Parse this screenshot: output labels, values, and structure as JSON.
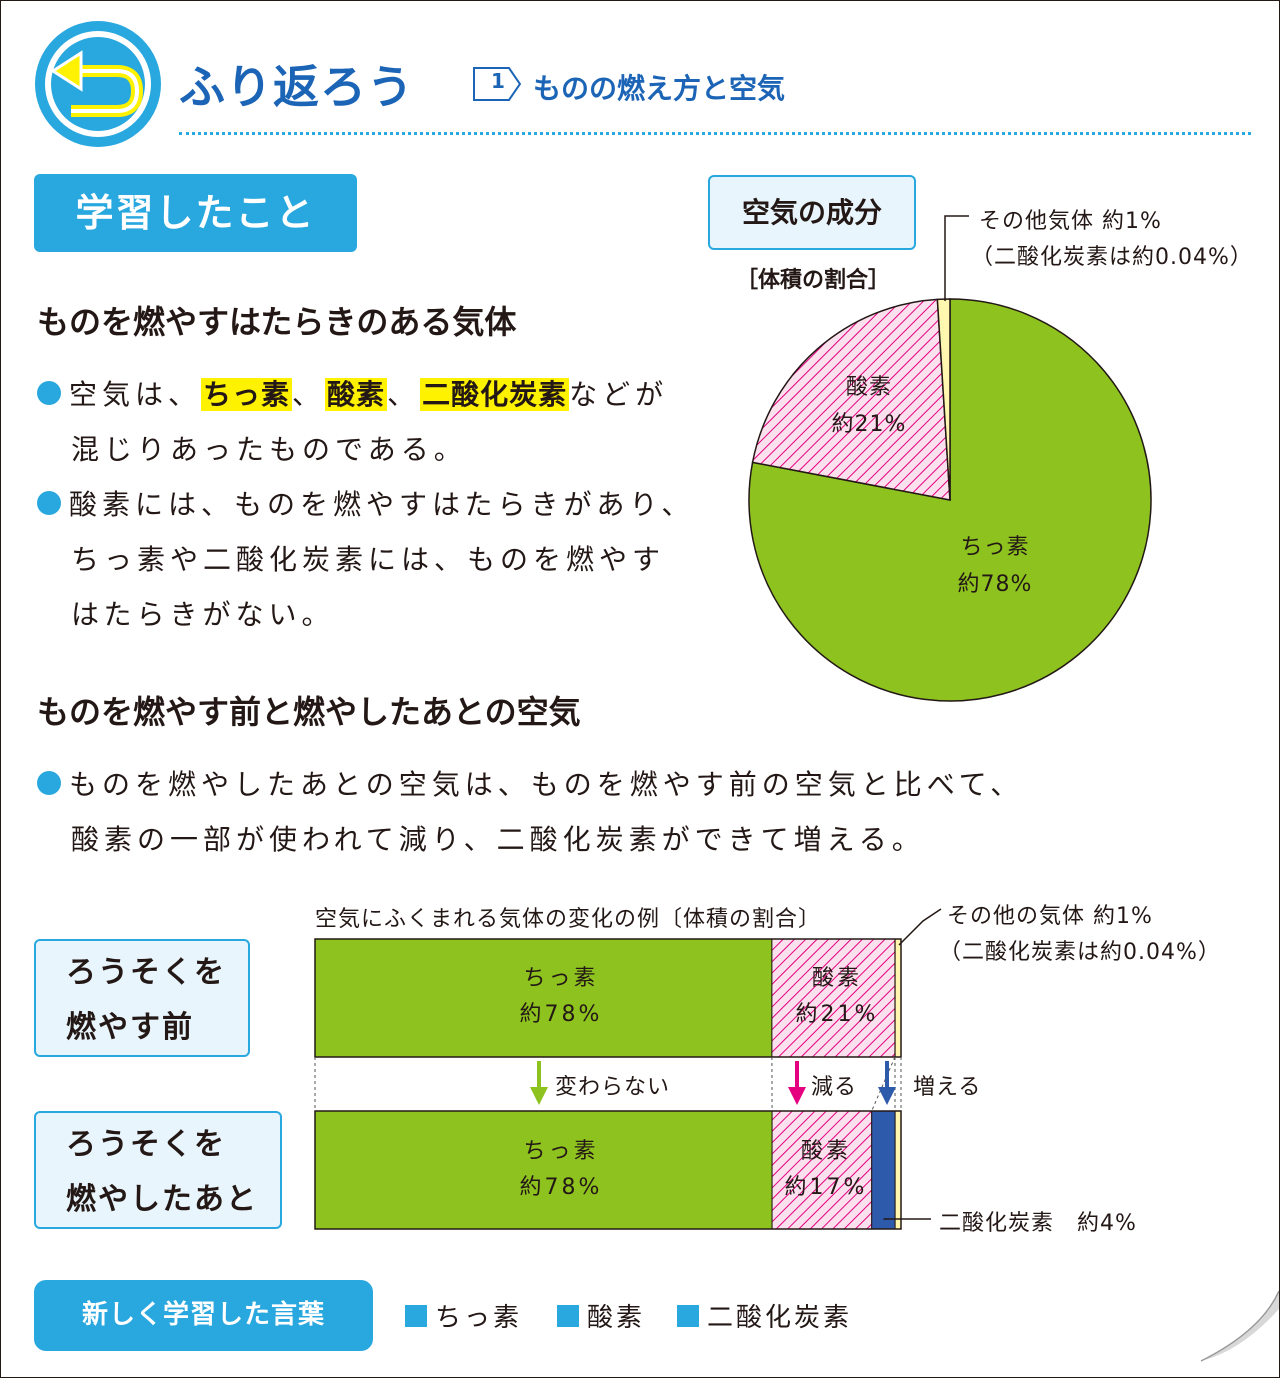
{
  "header": {
    "logo_icon": "return-arrow-icon",
    "title": "ふり返ろう",
    "unit_number": "1",
    "unit_title": "ものの燃え方と空気"
  },
  "section_tab": "学習したこと",
  "section1": {
    "heading": "ものを燃やすはたらきのある気体",
    "b1_pre": "空気は、",
    "b1_hl1": "ちっ素",
    "b1_sep1": "、",
    "b1_hl2": "酸素",
    "b1_sep2": "、",
    "b1_hl3": "二酸化炭素",
    "b1_post": "などが",
    "b1_line2": "混じりあったものである。",
    "b2_line1": "酸素には、ものを燃やすはたらきがあり、",
    "b2_line2": "ちっ素や二酸化炭素には、ものを燃やす",
    "b2_line3": "はたらきがない。"
  },
  "pie_box_title": "空気の成分",
  "pie_caption": "［体積の割合］",
  "pie_other_label1": "その他気体 約1%",
  "pie_other_label2": "（二酸化炭素は約0.04%）",
  "section2": {
    "heading": "ものを燃やす前と燃やしたあとの空気",
    "b1_line1": "ものを燃やしたあとの空気は、ものを燃やす前の空気と比べて、",
    "b1_line2": "酸素の一部が使われて減り、二酸化炭素ができて増える。"
  },
  "bar_caption": "空気にふくまれる気体の変化の例〔体積の割合〕",
  "bar_other_label1": "その他の気体 約1%",
  "bar_other_label2": "（二酸化炭素は約0.04%）",
  "cond_before_1": "ろうそくを",
  "cond_before_2": "燃やす前",
  "cond_after_1": "ろうそくを",
  "cond_after_2": "燃やしたあと",
  "change_n2": "変わらない",
  "change_o2": "減る",
  "change_co2": "増える",
  "co2_after_label": "二酸化炭素　約4%",
  "words_tab": "新しく学習した言葉",
  "words": [
    "ちっ素",
    "酸素",
    "二酸化炭素"
  ],
  "colors": {
    "accent_blue": "#29a8df",
    "title_blue": "#1b64b6",
    "nitrogen_green": "#8dc21f",
    "oxygen_pink": "#e4007f",
    "co2_blue": "#2e5aac",
    "other_yellow": "#fff6b0",
    "highlight_yellow": "#fff200"
  },
  "chart_data": [
    {
      "type": "pie",
      "title": "空気の成分",
      "subtitle": "［体積の割合］",
      "series": [
        {
          "label": "ちっ素",
          "display": "約78%",
          "value": 78
        },
        {
          "label": "酸素",
          "display": "約21%",
          "value": 21
        },
        {
          "label": "その他気体",
          "display": "約1%",
          "value": 1
        }
      ],
      "note": "（二酸化炭素は約0.04%）"
    },
    {
      "type": "bar",
      "orientation": "horizontal-stacked",
      "title": "空気にふくまれる気体の変化の例〔体積の割合〕",
      "categories": [
        "ろうそくを燃やす前",
        "ろうそくを燃やしたあと"
      ],
      "series": [
        {
          "name": "ちっ素",
          "values": [
            78,
            78
          ],
          "labels": [
            "約78%",
            "約78%"
          ]
        },
        {
          "name": "酸素",
          "values": [
            21,
            17
          ],
          "labels": [
            "約21%",
            "約17%"
          ]
        },
        {
          "name": "二酸化炭素",
          "values": [
            0.04,
            4
          ],
          "labels": [
            "",
            "約4%"
          ]
        },
        {
          "name": "その他の気体",
          "values": [
            1,
            1
          ],
          "labels": [
            "約1%",
            ""
          ]
        }
      ],
      "xlim": [
        0,
        100
      ]
    }
  ]
}
